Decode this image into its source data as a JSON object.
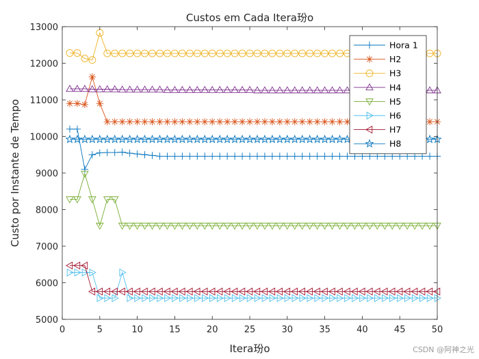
{
  "chart_data": {
    "type": "line",
    "title": "Custos em Cada Itera玢o",
    "xlabel": "Itera玢o",
    "ylabel": "Custo por Instante de Tempo",
    "xlim": [
      0,
      50
    ],
    "ylim": [
      5000,
      13000
    ],
    "xticks": [
      0,
      5,
      10,
      15,
      20,
      25,
      30,
      35,
      40,
      45,
      50
    ],
    "yticks": [
      5000,
      6000,
      7000,
      8000,
      9000,
      10000,
      11000,
      12000,
      13000
    ],
    "grid": false,
    "legend_position": "top-right",
    "x": [
      1,
      2,
      3,
      4,
      5,
      6,
      7,
      8,
      9,
      10,
      11,
      12,
      13,
      14,
      15,
      16,
      17,
      18,
      19,
      20,
      21,
      22,
      23,
      24,
      25,
      26,
      27,
      28,
      29,
      30,
      31,
      32,
      33,
      34,
      35,
      36,
      37,
      38,
      39,
      40,
      41,
      42,
      43,
      44,
      45,
      46,
      47,
      48,
      49,
      50
    ],
    "series": [
      {
        "name": "Hora 1",
        "color": "#0072BD",
        "marker": "plus",
        "values": [
          10200,
          10200,
          9100,
          9500,
          9550,
          9560,
          9560,
          9570,
          9540,
          9520,
          9500,
          9480,
          9460,
          9460,
          9460,
          9460,
          9460,
          9460,
          9460,
          9460,
          9460,
          9460,
          9460,
          9460,
          9460,
          9460,
          9460,
          9460,
          9460,
          9460,
          9460,
          9460,
          9460,
          9460,
          9460,
          9460,
          9460,
          9460,
          9460,
          9460,
          9460,
          9460,
          9460,
          9460,
          9460,
          9460,
          9460,
          9460,
          9460,
          9460
        ]
      },
      {
        "name": "H2",
        "color": "#D95319",
        "marker": "star",
        "values": [
          10900,
          10900,
          10870,
          11630,
          10900,
          10400,
          10400,
          10400,
          10400,
          10400,
          10400,
          10400,
          10400,
          10400,
          10400,
          10400,
          10400,
          10400,
          10400,
          10400,
          10400,
          10400,
          10400,
          10400,
          10400,
          10400,
          10400,
          10400,
          10400,
          10400,
          10400,
          10400,
          10400,
          10400,
          10400,
          10400,
          10400,
          10400,
          10400,
          10400,
          10400,
          10400,
          10400,
          10400,
          10400,
          10400,
          10400,
          10400,
          10400,
          10400
        ]
      },
      {
        "name": "H3",
        "color": "#EDB120",
        "marker": "circle",
        "values": [
          12280,
          12280,
          12130,
          12090,
          12830,
          12270,
          12270,
          12270,
          12270,
          12270,
          12270,
          12270,
          12270,
          12270,
          12270,
          12270,
          12270,
          12270,
          12270,
          12270,
          12270,
          12270,
          12270,
          12270,
          12270,
          12270,
          12270,
          12270,
          12270,
          12270,
          12270,
          12270,
          12270,
          12270,
          12270,
          12270,
          12270,
          12270,
          12270,
          12270,
          12270,
          12270,
          12270,
          12270,
          12270,
          12270,
          12270,
          12270,
          12270,
          12270
        ]
      },
      {
        "name": "H4",
        "color": "#7E2F8E",
        "marker": "triangle-up",
        "values": [
          11300,
          11300,
          11300,
          11290,
          11290,
          11290,
          11290,
          11280,
          11280,
          11280,
          11280,
          11280,
          11280,
          11270,
          11270,
          11270,
          11270,
          11270,
          11270,
          11270,
          11270,
          11270,
          11270,
          11270,
          11270,
          11260,
          11260,
          11260,
          11260,
          11260,
          11260,
          11260,
          11260,
          11260,
          11260,
          11260,
          11260,
          11260,
          11260,
          11260,
          11260,
          11260,
          11260,
          11260,
          11260,
          11260,
          11260,
          11260,
          11260,
          11260
        ]
      },
      {
        "name": "H5",
        "color": "#77AC30",
        "marker": "triangle-down",
        "values": [
          8280,
          8280,
          8980,
          8280,
          7560,
          8280,
          8280,
          7560,
          7560,
          7560,
          7560,
          7560,
          7560,
          7560,
          7560,
          7560,
          7560,
          7560,
          7560,
          7560,
          7560,
          7560,
          7560,
          7560,
          7560,
          7560,
          7560,
          7560,
          7560,
          7560,
          7560,
          7560,
          7560,
          7560,
          7560,
          7560,
          7560,
          7560,
          7560,
          7560,
          7560,
          7560,
          7560,
          7560,
          7560,
          7560,
          7560,
          7560,
          7560,
          7560
        ]
      },
      {
        "name": "H6",
        "color": "#4DBEEE",
        "marker": "triangle-right",
        "values": [
          6280,
          6280,
          6280,
          6280,
          5580,
          5580,
          5580,
          6280,
          5580,
          5580,
          5580,
          5580,
          5580,
          5580,
          5580,
          5580,
          5580,
          5580,
          5580,
          5580,
          5580,
          5580,
          5580,
          5580,
          5580,
          5580,
          5580,
          5580,
          5580,
          5580,
          5580,
          5580,
          5580,
          5580,
          5580,
          5580,
          5580,
          5580,
          5580,
          5580,
          5580,
          5580,
          5580,
          5580,
          5580,
          5580,
          5580,
          5580,
          5580,
          5580
        ]
      },
      {
        "name": "H7",
        "color": "#A2142F",
        "marker": "triangle-left",
        "values": [
          6470,
          6470,
          6470,
          5760,
          5760,
          5760,
          5760,
          5760,
          5760,
          5760,
          5760,
          5760,
          5760,
          5760,
          5760,
          5760,
          5760,
          5760,
          5760,
          5760,
          5760,
          5760,
          5760,
          5760,
          5760,
          5760,
          5760,
          5760,
          5760,
          5760,
          5760,
          5760,
          5760,
          5760,
          5760,
          5760,
          5760,
          5760,
          5760,
          5760,
          5760,
          5760,
          5760,
          5760,
          5760,
          5760,
          5760,
          5760,
          5760,
          5760
        ]
      },
      {
        "name": "H8",
        "color": "#0072BD",
        "marker": "pentagram",
        "values": [
          9920,
          9920,
          9920,
          9920,
          9920,
          9920,
          9920,
          9920,
          9920,
          9920,
          9920,
          9920,
          9920,
          9920,
          9920,
          9920,
          9920,
          9920,
          9920,
          9920,
          9920,
          9920,
          9920,
          9920,
          9920,
          9920,
          9920,
          9920,
          9920,
          9920,
          9920,
          9920,
          9920,
          9920,
          9920,
          9920,
          9920,
          9920,
          9920,
          9920,
          9920,
          9920,
          9920,
          9920,
          9920,
          9920,
          9920,
          9920,
          9920,
          9920
        ]
      }
    ]
  },
  "watermark": "CSDN @阿神之光"
}
